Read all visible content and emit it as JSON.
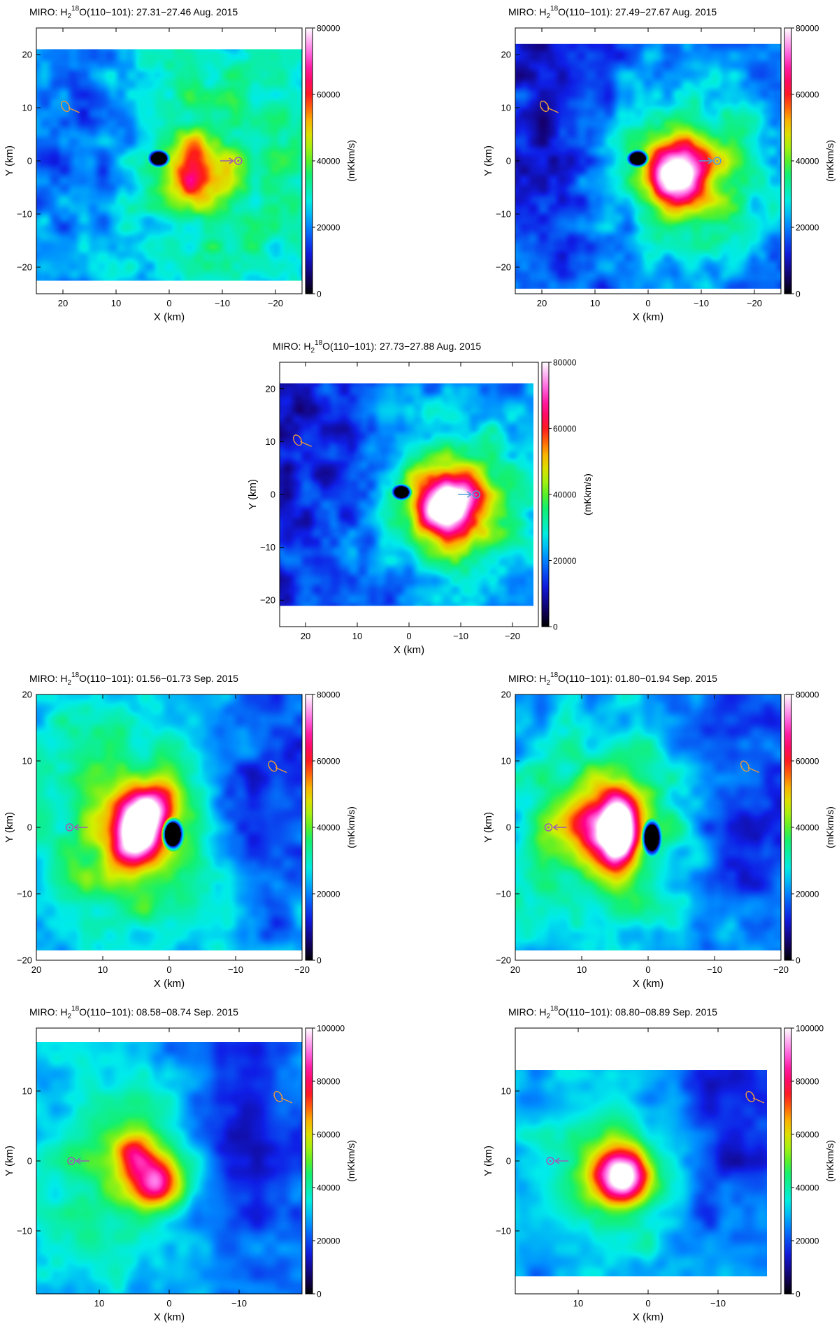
{
  "figure": {
    "panel_count": 7
  },
  "chart_data": [
    {
      "type": "heatmap",
      "title_prefix": "MIRO: H",
      "title_sub": "2",
      "title_sup": "18",
      "title_suffix": "O(110−101): 27.31−27.46 Aug. 2015",
      "xlabel": "X (km)",
      "ylabel": "Y (km)",
      "colorbar_label": "(mKkm/s)",
      "xlim": [
        25,
        -25
      ],
      "ylim": [
        -25,
        25
      ],
      "xticks": [
        20,
        10,
        0,
        -10,
        -20
      ],
      "xtick_labels": [
        "20",
        "10",
        "0",
        "−10",
        "−20"
      ],
      "yticks": [
        20,
        10,
        0,
        -10,
        -20
      ],
      "ytick_labels": [
        "20",
        "10",
        "0",
        "−10",
        "−20"
      ],
      "colorbar_range": [
        0,
        80000
      ],
      "colorbar_ticks": [
        0,
        20000,
        40000,
        60000,
        80000
      ],
      "colorbar_tick_labels": [
        "0",
        "20000",
        "40000",
        "60000",
        "80000"
      ],
      "map_extent": {
        "x": [
          25,
          -25
        ],
        "y": [
          -22.5,
          21
        ]
      },
      "background_level": 22000,
      "blobs": [
        {
          "x": -5,
          "y": -3,
          "sx": 4,
          "sy": 4,
          "amp": 26000
        },
        {
          "x": -6,
          "y": 3,
          "sx": 3,
          "sy": 3,
          "amp": 8000
        },
        {
          "x": -10,
          "y": 0,
          "sx": 14,
          "sy": 18,
          "amp": 14000
        },
        {
          "x": 16,
          "y": 5,
          "sx": 6,
          "sy": 12,
          "amp": -8000
        }
      ],
      "nucleus_hole": {
        "x": 2,
        "y": 0.5,
        "sx": 1.5,
        "sy": 1.2
      },
      "marker": {
        "x": -13,
        "y": 0,
        "arrow": "right",
        "color": "#9a5fb4"
      },
      "spin_marker": {
        "x": 19,
        "y": 10,
        "color": "#e89a3a"
      }
    },
    {
      "type": "heatmap",
      "title_prefix": "MIRO: H",
      "title_sub": "2",
      "title_sup": "18",
      "title_suffix": "O(110−101): 27.49−27.67 Aug. 2015",
      "xlabel": "X (km)",
      "ylabel": "Y (km)",
      "colorbar_label": "(mKkm/s)",
      "xlim": [
        25,
        -25
      ],
      "ylim": [
        -25,
        25
      ],
      "xticks": [
        20,
        10,
        0,
        -10,
        -20
      ],
      "xtick_labels": [
        "20",
        "10",
        "0",
        "−10",
        "−20"
      ],
      "yticks": [
        20,
        10,
        0,
        -10,
        -20
      ],
      "ytick_labels": [
        "20",
        "10",
        "0",
        "−10",
        "−20"
      ],
      "colorbar_range": [
        0,
        80000
      ],
      "colorbar_ticks": [
        0,
        20000,
        40000,
        60000,
        80000
      ],
      "colorbar_tick_labels": [
        "0",
        "20000",
        "40000",
        "60000",
        "80000"
      ],
      "map_extent": {
        "x": [
          25,
          -25
        ],
        "y": [
          -24,
          22
        ]
      },
      "background_level": 16000,
      "blobs": [
        {
          "x": -5,
          "y": -2,
          "sx": 4.5,
          "sy": 4.5,
          "amp": 52000
        },
        {
          "x": -10,
          "y": -2,
          "sx": 12,
          "sy": 13,
          "amp": 22000
        },
        {
          "x": 18,
          "y": 10,
          "sx": 6,
          "sy": 12,
          "amp": -6000
        }
      ],
      "nucleus_hole": {
        "x": 2,
        "y": 0.5,
        "sx": 1.5,
        "sy": 1.2
      },
      "marker": {
        "x": -13,
        "y": 0,
        "arrow": "right",
        "color": "#4f9fd8"
      },
      "spin_marker": {
        "x": 19,
        "y": 10,
        "color": "#e89a3a"
      }
    },
    {
      "type": "heatmap",
      "title_prefix": "MIRO: H",
      "title_sub": "2",
      "title_sup": "18",
      "title_suffix": "O(110−101): 27.73−27.88 Aug. 2015",
      "xlabel": "X (km)",
      "ylabel": "Y (km)",
      "colorbar_label": "(mKkm/s)",
      "xlim": [
        25,
        -25
      ],
      "ylim": [
        -25,
        25
      ],
      "xticks": [
        20,
        10,
        0,
        -10,
        -20
      ],
      "xtick_labels": [
        "20",
        "10",
        "0",
        "−10",
        "−20"
      ],
      "yticks": [
        20,
        10,
        0,
        -10,
        -20
      ],
      "ytick_labels": [
        "20",
        "10",
        "0",
        "−10",
        "−20"
      ],
      "colorbar_range": [
        0,
        80000
      ],
      "colorbar_ticks": [
        0,
        20000,
        40000,
        60000,
        80000
      ],
      "colorbar_tick_labels": [
        "0",
        "20000",
        "40000",
        "60000",
        "80000"
      ],
      "map_extent": {
        "x": [
          25,
          -24
        ],
        "y": [
          -21,
          21
        ]
      },
      "background_level": 16000,
      "blobs": [
        {
          "x": -7,
          "y": -2,
          "sx": 4.5,
          "sy": 4.5,
          "amp": 56000
        },
        {
          "x": -11,
          "y": -1,
          "sx": 12,
          "sy": 12,
          "amp": 24000
        },
        {
          "x": 18,
          "y": 8,
          "sx": 7,
          "sy": 14,
          "amp": -6000
        }
      ],
      "nucleus_hole": {
        "x": 1.5,
        "y": 0.5,
        "sx": 1.4,
        "sy": 1.1
      },
      "marker": {
        "x": -13,
        "y": 0,
        "arrow": "right",
        "color": "#4f9fd8"
      },
      "spin_marker": {
        "x": 21,
        "y": 10,
        "color": "#e89a3a"
      }
    },
    {
      "type": "heatmap",
      "title_prefix": "MIRO: H",
      "title_sub": "2",
      "title_sup": "18",
      "title_suffix": "O(110−101): 01.56−01.73 Sep. 2015",
      "xlabel": "X (km)",
      "ylabel": "Y (km)",
      "colorbar_label": "(mKkm/s)",
      "xlim": [
        20,
        -20
      ],
      "ylim": [
        -20,
        20
      ],
      "xticks": [
        20,
        10,
        0,
        -10,
        -20
      ],
      "xtick_labels": [
        "20",
        "10",
        "0",
        "−10",
        "−20"
      ],
      "yticks": [
        20,
        10,
        0,
        -10,
        -20
      ],
      "ytick_labels": [
        "20",
        "10",
        "0",
        "−10",
        "−20"
      ],
      "colorbar_range": [
        0,
        80000
      ],
      "colorbar_ticks": [
        0,
        20000,
        40000,
        60000,
        80000
      ],
      "colorbar_tick_labels": [
        "0",
        "20000",
        "40000",
        "60000",
        "80000"
      ],
      "map_extent": {
        "x": [
          20,
          -20
        ],
        "y": [
          -18.5,
          20
        ]
      },
      "background_level": 24000,
      "blobs": [
        {
          "x": 5,
          "y": -1,
          "sx": 2.5,
          "sy": 3,
          "amp": 50000
        },
        {
          "x": 3,
          "y": 3,
          "sx": 2.5,
          "sy": 2.5,
          "amp": 34000
        },
        {
          "x": 5,
          "y": 0,
          "sx": 9,
          "sy": 10,
          "amp": 22000
        },
        {
          "x": -14,
          "y": 3,
          "sx": 7,
          "sy": 12,
          "amp": -12000
        }
      ],
      "nucleus_hole": {
        "x": -0.5,
        "y": -1,
        "sx": 1.2,
        "sy": 1.8
      },
      "marker": {
        "x": 15,
        "y": 0,
        "arrow": "left",
        "color": "#9a5fb4"
      },
      "spin_marker": {
        "x": -16,
        "y": 9,
        "color": "#e89a3a"
      }
    },
    {
      "type": "heatmap",
      "title_prefix": "MIRO: H",
      "title_sub": "2",
      "title_sup": "18",
      "title_suffix": "O(110−101): 01.80−01.94 Sep. 2015",
      "xlabel": "X (km)",
      "ylabel": "Y (km)",
      "colorbar_label": "(mKkm/s)",
      "xlim": [
        20,
        -20
      ],
      "ylim": [
        -20,
        20
      ],
      "xticks": [
        20,
        10,
        0,
        -10,
        -20
      ],
      "xtick_labels": [
        "20",
        "10",
        "0",
        "−10",
        "−20"
      ],
      "yticks": [
        20,
        10,
        0,
        -10,
        -20
      ],
      "ytick_labels": [
        "20",
        "10",
        "0",
        "−10",
        "−20"
      ],
      "colorbar_range": [
        0,
        80000
      ],
      "colorbar_ticks": [
        0,
        20000,
        40000,
        60000,
        80000
      ],
      "colorbar_tick_labels": [
        "0",
        "20000",
        "40000",
        "60000",
        "80000"
      ],
      "map_extent": {
        "x": [
          20,
          -20
        ],
        "y": [
          -18.5,
          20
        ]
      },
      "background_level": 22000,
      "blobs": [
        {
          "x": 4.5,
          "y": -1,
          "sx": 1.8,
          "sy": 3.5,
          "amp": 46000
        },
        {
          "x": 7,
          "y": 1,
          "sx": 4.5,
          "sy": 4,
          "amp": 30000
        },
        {
          "x": 6,
          "y": -1,
          "sx": 10,
          "sy": 10,
          "amp": 18000
        },
        {
          "x": -14,
          "y": 5,
          "sx": 7,
          "sy": 14,
          "amp": -10000
        }
      ],
      "nucleus_hole": {
        "x": -0.5,
        "y": -1.5,
        "sx": 1.1,
        "sy": 2.0
      },
      "marker": {
        "x": 15,
        "y": 0,
        "arrow": "left",
        "color": "#9a5fb4"
      },
      "spin_marker": {
        "x": -15,
        "y": 9,
        "color": "#e89a3a"
      }
    },
    {
      "type": "heatmap",
      "title_prefix": "MIRO: H",
      "title_sub": "2",
      "title_sup": "18",
      "title_suffix": "O(110−101): 08.58−08.74 Sep. 2015",
      "xlabel": "X (km)",
      "ylabel": "Y (km)",
      "colorbar_label": "(mKkm/s)",
      "xlim": [
        19,
        -19
      ],
      "ylim": [
        -19,
        19
      ],
      "xticks": [
        10,
        0,
        -10
      ],
      "xtick_labels": [
        "10",
        "0",
        "−10"
      ],
      "yticks": [
        10,
        0,
        -10
      ],
      "ytick_labels": [
        "10",
        "0",
        "−10"
      ],
      "colorbar_range": [
        0,
        100000
      ],
      "colorbar_ticks": [
        0,
        20000,
        40000,
        60000,
        80000,
        100000
      ],
      "colorbar_tick_labels": [
        "0",
        "20000",
        "40000",
        "60000",
        "80000",
        "100000"
      ],
      "map_extent": {
        "x": [
          19,
          -19
        ],
        "y": [
          -19,
          17
        ]
      },
      "background_level": 30000,
      "blobs": [
        {
          "x": 2,
          "y": -3,
          "sx": 2.5,
          "sy": 2.5,
          "amp": 42000
        },
        {
          "x": 5,
          "y": 1,
          "sx": 2,
          "sy": 2,
          "amp": 32000
        },
        {
          "x": 5,
          "y": -1,
          "sx": 8,
          "sy": 8,
          "amp": 22000
        },
        {
          "x": -11,
          "y": 3,
          "sx": 8,
          "sy": 14,
          "amp": -16000
        }
      ],
      "marker": {
        "x": 14,
        "y": 0,
        "arrow": "left",
        "color": "#9a5fb4"
      },
      "spin_marker": {
        "x": -16,
        "y": 9,
        "color": "#e89a3a"
      }
    },
    {
      "type": "heatmap",
      "title_prefix": "MIRO: H",
      "title_sub": "2",
      "title_sup": "18",
      "title_suffix": "O(110−101): 08.80−08.89 Sep. 2015",
      "xlabel": "X (km)",
      "ylabel": "Y (km)",
      "colorbar_label": "(mKkm/s)",
      "xlim": [
        19,
        -19
      ],
      "ylim": [
        -19,
        19
      ],
      "xticks": [
        10,
        0,
        -10
      ],
      "xtick_labels": [
        "10",
        "0",
        "−10"
      ],
      "yticks": [
        10,
        0,
        -10
      ],
      "ytick_labels": [
        "10",
        "0",
        "−10"
      ],
      "colorbar_range": [
        0,
        100000
      ],
      "colorbar_ticks": [
        0,
        20000,
        40000,
        60000,
        80000,
        100000
      ],
      "colorbar_tick_labels": [
        "0",
        "20000",
        "40000",
        "60000",
        "80000",
        "100000"
      ],
      "map_extent": {
        "x": [
          19,
          -17
        ],
        "y": [
          -16.5,
          13
        ]
      },
      "background_level": 28000,
      "blobs": [
        {
          "x": 3.5,
          "y": -2.5,
          "sx": 2.5,
          "sy": 2.5,
          "amp": 52000
        },
        {
          "x": 5,
          "y": -1,
          "sx": 3.5,
          "sy": 3.5,
          "amp": 20000
        },
        {
          "x": 4,
          "y": -2,
          "sx": 8,
          "sy": 8,
          "amp": 18000
        },
        {
          "x": -11,
          "y": 3,
          "sx": 7,
          "sy": 12,
          "amp": -14000
        }
      ],
      "marker": {
        "x": 14,
        "y": 0,
        "arrow": "left",
        "color": "#9a5fb4"
      },
      "spin_marker": {
        "x": -15,
        "y": 9,
        "color": "#e89a3a"
      }
    }
  ]
}
